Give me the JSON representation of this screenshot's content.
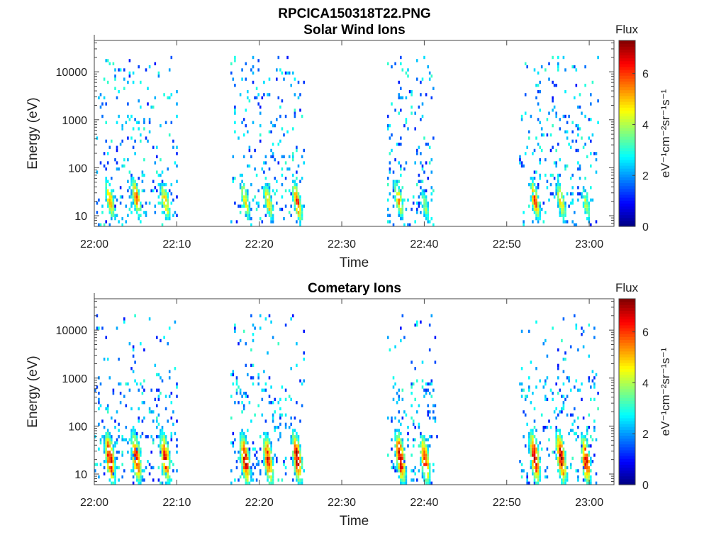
{
  "figure": {
    "title": "RPCICA150318T22.PNG"
  },
  "chart_data": [
    {
      "type": "heatmap",
      "title": "Solar Wind Ions",
      "xlabel": "Time",
      "ylabel": "Energy (eV)",
      "x_tick_labels": [
        "22:00",
        "22:10",
        "22:20",
        "22:30",
        "22:40",
        "22:50",
        "23:00"
      ],
      "x_range_minutes": [
        0,
        63
      ],
      "y_scale": "log",
      "y_tick_labels": [
        "10",
        "100",
        "1000",
        "10000"
      ],
      "y_tick_values": [
        10,
        100,
        1000,
        10000
      ],
      "y_range": [
        6,
        45000
      ],
      "colorbar": {
        "label": "Flux",
        "units": "eV⁻¹cm⁻²sr⁻¹s⁻¹",
        "range": [
          0,
          7.3
        ],
        "tick_labels": [
          "0",
          "2",
          "4",
          "6"
        ],
        "tick_values": [
          0,
          2,
          4,
          6
        ],
        "colormap": "jet"
      },
      "bursts_minutes": [
        [
          0,
          10
        ],
        [
          16.5,
          25.5
        ],
        [
          35.5,
          41
        ],
        [
          51.5,
          61
        ]
      ],
      "burst_peaks": [
        {
          "t": 1.8,
          "energy": 20,
          "flux": 5.5
        },
        {
          "t": 5.0,
          "energy": 22,
          "flux": 5.8
        },
        {
          "t": 8.5,
          "energy": 18,
          "flux": 5.2
        },
        {
          "t": 18.2,
          "energy": 20,
          "flux": 4.8
        },
        {
          "t": 21.0,
          "energy": 18,
          "flux": 5.2
        },
        {
          "t": 24.5,
          "energy": 18,
          "flux": 6.2
        },
        {
          "t": 36.8,
          "energy": 20,
          "flux": 5.2
        },
        {
          "t": 40.0,
          "energy": 15,
          "flux": 4.0
        },
        {
          "t": 53.3,
          "energy": 20,
          "flux": 6.0
        },
        {
          "t": 56.5,
          "energy": 18,
          "flux": 5.2
        },
        {
          "t": 59.5,
          "energy": 16,
          "flux": 4.2
        }
      ]
    },
    {
      "type": "heatmap",
      "title": "Cometary Ions",
      "xlabel": "Time",
      "ylabel": "Energy (eV)",
      "x_tick_labels": [
        "22:00",
        "22:10",
        "22:20",
        "22:30",
        "22:40",
        "22:50",
        "23:00"
      ],
      "x_range_minutes": [
        0,
        63
      ],
      "y_scale": "log",
      "y_tick_labels": [
        "10",
        "100",
        "1000",
        "10000"
      ],
      "y_tick_values": [
        10,
        100,
        1000,
        10000
      ],
      "y_range": [
        6,
        45000
      ],
      "colorbar": {
        "label": "Flux",
        "units": "eV⁻¹cm⁻²sr⁻¹s⁻¹",
        "range": [
          0,
          7.3
        ],
        "tick_labels": [
          "0",
          "2",
          "4",
          "6"
        ],
        "tick_values": [
          0,
          2,
          4,
          6
        ],
        "colormap": "jet"
      },
      "bursts_minutes": [
        [
          0,
          10
        ],
        [
          16.5,
          25.5
        ],
        [
          35.5,
          41.5
        ],
        [
          51.5,
          61
        ]
      ],
      "burst_peaks": [
        {
          "t": 1.8,
          "energy": 20,
          "flux": 6.8
        },
        {
          "t": 5.0,
          "energy": 20,
          "flux": 6.5
        },
        {
          "t": 8.5,
          "energy": 20,
          "flux": 6.5
        },
        {
          "t": 18.2,
          "energy": 18,
          "flux": 6.8
        },
        {
          "t": 21.0,
          "energy": 18,
          "flux": 6.5
        },
        {
          "t": 24.5,
          "energy": 20,
          "flux": 7.0
        },
        {
          "t": 37.0,
          "energy": 20,
          "flux": 7.0
        },
        {
          "t": 40.0,
          "energy": 18,
          "flux": 6.3
        },
        {
          "t": 53.3,
          "energy": 20,
          "flux": 7.0
        },
        {
          "t": 56.5,
          "energy": 20,
          "flux": 7.0
        },
        {
          "t": 59.5,
          "energy": 18,
          "flux": 6.5
        }
      ]
    }
  ]
}
